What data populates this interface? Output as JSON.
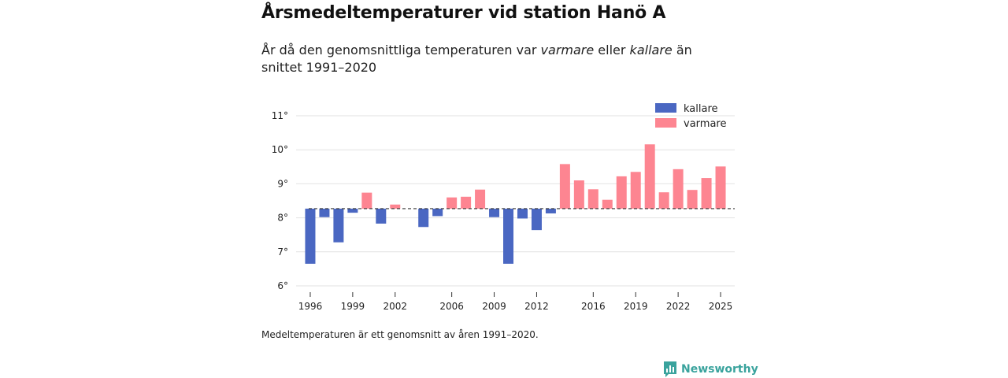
{
  "header": {
    "title": "Årsmedeltemperaturer vid station Hanö A",
    "subtitle_pre": "År då den genomsnittliga temperaturen var ",
    "subtitle_warm": "varmare",
    "subtitle_mid": " eller ",
    "subtitle_cold": "kallare",
    "subtitle_post": " än snittet 1991–2020"
  },
  "footer": {
    "note": "Medeltemperaturen är ett genomsnitt av åren 1991–2020.",
    "brand": "Newsworthy"
  },
  "colors": {
    "cold": "#4a67c2",
    "warm": "#fd8591",
    "grid": "#e2e2e2",
    "baseline": "#333333",
    "brand": "#3aa39d"
  },
  "chart_data": {
    "type": "bar",
    "title": "Årsmedeltemperaturer vid station Hanö A",
    "xlabel": "",
    "ylabel": "",
    "baseline": 8.27,
    "ylim": [
      6,
      11
    ],
    "yticks": [
      6,
      7,
      8,
      9,
      10,
      11
    ],
    "ytick_labels": [
      "6°",
      "7°",
      "8°",
      "9°",
      "10°",
      "11°"
    ],
    "xlim": [
      1995,
      2026
    ],
    "xticks": [
      1996,
      1999,
      2002,
      2006,
      2009,
      2012,
      2016,
      2019,
      2022,
      2025
    ],
    "legend": {
      "position": "top-right",
      "entries": [
        "kallare",
        "varmare"
      ]
    },
    "years": [
      1996,
      1997,
      1998,
      1999,
      2000,
      2001,
      2002,
      2003,
      2004,
      2005,
      2006,
      2007,
      2008,
      2009,
      2010,
      2011,
      2012,
      2013,
      2014,
      2015,
      2016,
      2017,
      2018,
      2019,
      2020,
      2021,
      2022,
      2023,
      2024,
      2025
    ],
    "values": [
      6.65,
      8.02,
      7.28,
      8.15,
      8.74,
      7.83,
      8.39,
      null,
      7.73,
      8.05,
      8.6,
      8.62,
      8.83,
      8.02,
      6.65,
      7.98,
      7.64,
      8.13,
      9.58,
      9.1,
      8.84,
      8.53,
      9.22,
      9.35,
      10.16,
      8.75,
      9.43,
      8.82,
      9.17,
      9.51
    ]
  }
}
